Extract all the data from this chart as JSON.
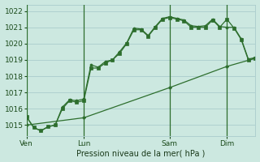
{
  "bg_color": "#cce8e0",
  "grid_color": "#aacccc",
  "line_color": "#2d6e2d",
  "title": "Pression niveau de la mer( hPa )",
  "ylabel_values": [
    1015,
    1016,
    1017,
    1018,
    1019,
    1020,
    1021,
    1022
  ],
  "x_tick_labels": [
    "Ven",
    "Lun",
    "Sam",
    "Dim"
  ],
  "x_tick_positions": [
    0,
    8,
    20,
    28
  ],
  "line1_x": [
    0,
    1,
    2,
    3,
    4,
    5,
    6,
    7,
    8,
    9,
    10,
    11,
    12,
    13,
    14,
    15,
    16,
    17,
    18,
    19,
    20,
    21,
    22,
    23,
    24,
    25,
    26,
    27,
    28,
    29,
    30,
    31,
    32
  ],
  "line1_y": [
    1015.5,
    1014.85,
    1014.65,
    1014.9,
    1015.0,
    1016.1,
    1016.55,
    1016.5,
    1016.6,
    1018.7,
    1018.55,
    1018.9,
    1019.0,
    1019.5,
    1020.05,
    1020.95,
    1020.9,
    1020.5,
    1021.05,
    1021.55,
    1021.65,
    1021.55,
    1021.45,
    1021.1,
    1021.05,
    1021.1,
    1021.5,
    1021.05,
    1021.0,
    1021.0,
    1020.3,
    1019.05,
    1019.15
  ],
  "line2_x": [
    0,
    1,
    2,
    3,
    4,
    5,
    6,
    7,
    8,
    9,
    10,
    11,
    12,
    13,
    14,
    15,
    16,
    17,
    18,
    19,
    20,
    21,
    22,
    23,
    24,
    25,
    26,
    27,
    28,
    29,
    30,
    31,
    32
  ],
  "line2_y": [
    1015.5,
    1014.85,
    1014.65,
    1014.9,
    1015.0,
    1016.0,
    1016.5,
    1016.4,
    1016.5,
    1018.5,
    1018.5,
    1018.8,
    1019.0,
    1019.4,
    1020.0,
    1020.85,
    1020.85,
    1020.45,
    1021.0,
    1021.5,
    1021.6,
    1021.5,
    1021.4,
    1021.0,
    1021.0,
    1021.0,
    1021.45,
    1021.0,
    1021.5,
    1020.95,
    1020.25,
    1019.0,
    1019.1
  ],
  "line3_x": [
    0,
    8,
    20,
    28,
    32
  ],
  "line3_y": [
    1015.0,
    1015.45,
    1017.3,
    1018.6,
    1019.1
  ],
  "ylim": [
    1014.3,
    1022.4
  ],
  "xlim": [
    0,
    32
  ],
  "figsize": [
    3.2,
    2.0
  ],
  "dpi": 100
}
